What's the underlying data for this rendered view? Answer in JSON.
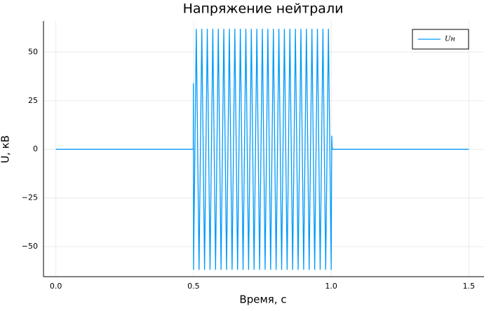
{
  "chart_data": {
    "type": "line",
    "title": "Напряжение нейтрали",
    "xlabel": "Время, с",
    "ylabel": "U, кВ",
    "x": [
      0,
      0.499,
      0.4995,
      0.5,
      0.51,
      0.52,
      0.53,
      0.54,
      0.55,
      0.56,
      0.57,
      0.58,
      0.59,
      0.6,
      0.61,
      0.62,
      0.63,
      0.64,
      0.65,
      0.66,
      0.67,
      0.68,
      0.69,
      0.7,
      0.71,
      0.72,
      0.73,
      0.74,
      0.75,
      0.76,
      0.77,
      0.78,
      0.79,
      0.8,
      0.81,
      0.82,
      0.83,
      0.84,
      0.85,
      0.86,
      0.87,
      0.88,
      0.89,
      0.9,
      0.91,
      0.92,
      0.93,
      0.94,
      0.95,
      0.96,
      0.97,
      0.98,
      0.99,
      1.0,
      1.002,
      1.004,
      1.5
    ],
    "series": [
      {
        "name": "Uн",
        "color": "#009af9",
        "values": [
          0,
          0,
          34,
          -62,
          62,
          -62,
          62,
          -62,
          62,
          -62,
          62,
          -62,
          62,
          -62,
          62,
          -62,
          62,
          -62,
          62,
          -62,
          62,
          -62,
          62,
          -62,
          62,
          -62,
          62,
          -62,
          62,
          -62,
          62,
          -62,
          62,
          -62,
          62,
          -62,
          62,
          -62,
          62,
          -62,
          62,
          -62,
          62,
          -62,
          62,
          -62,
          62,
          -62,
          62,
          -62,
          62,
          -62,
          62,
          -62,
          7,
          0,
          0
        ]
      }
    ],
    "xlim": [
      -0.045,
      1.555
    ],
    "ylim": [
      -65.5,
      66
    ],
    "xticks": [
      {
        "value": 0,
        "label": "0.0"
      },
      {
        "value": 0.5,
        "label": "0.5"
      },
      {
        "value": 1,
        "label": "1.0"
      },
      1.5
    ],
    "yticks": [
      {
        "value": -50,
        "label": "−50"
      },
      {
        "value": -25,
        "label": "−25"
      },
      0,
      25,
      50
    ],
    "grid": true,
    "legend": "top-right"
  }
}
